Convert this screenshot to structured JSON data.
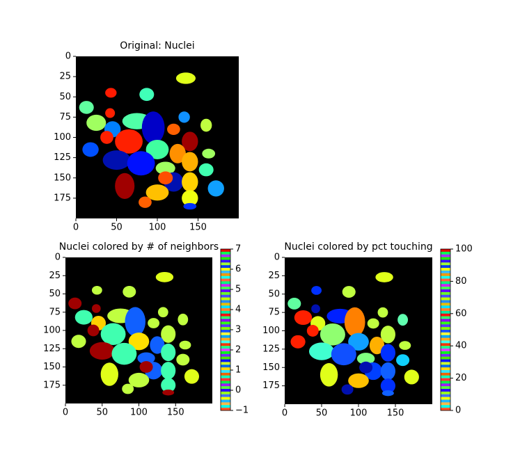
{
  "chart_data": [
    {
      "type": "image",
      "title": "Original: Nuclei",
      "xlim": [
        0,
        200
      ],
      "ylim": [
        200,
        0
      ],
      "xticks": [
        0,
        50,
        100,
        150
      ],
      "yticks": [
        0,
        25,
        50,
        75,
        100,
        125,
        150,
        175
      ]
    },
    {
      "type": "image",
      "title": "Nuclei colored by # of neighbors",
      "xlim": [
        0,
        200
      ],
      "ylim": [
        200,
        0
      ],
      "xticks": [
        0,
        50,
        100,
        150
      ],
      "yticks": [
        0,
        25,
        50,
        75,
        100,
        125,
        150,
        175
      ],
      "colorbar": {
        "ylim": [
          -1,
          7
        ],
        "yticks": [
          {
            "value": -1,
            "label": "−1"
          },
          0,
          1,
          2,
          3,
          4,
          5,
          6,
          7
        ]
      }
    },
    {
      "type": "image",
      "title": "Nuclei colored by pct touching",
      "xlim": [
        0,
        200
      ],
      "ylim": [
        200,
        0
      ],
      "xticks": [
        0,
        50,
        100,
        150
      ],
      "yticks": [
        0,
        25,
        50,
        75,
        100,
        125,
        150,
        175
      ],
      "colorbar": {
        "ylim": [
          0,
          100
        ],
        "yticks": [
          0,
          20,
          40,
          60,
          80,
          100
        ]
      }
    }
  ]
}
